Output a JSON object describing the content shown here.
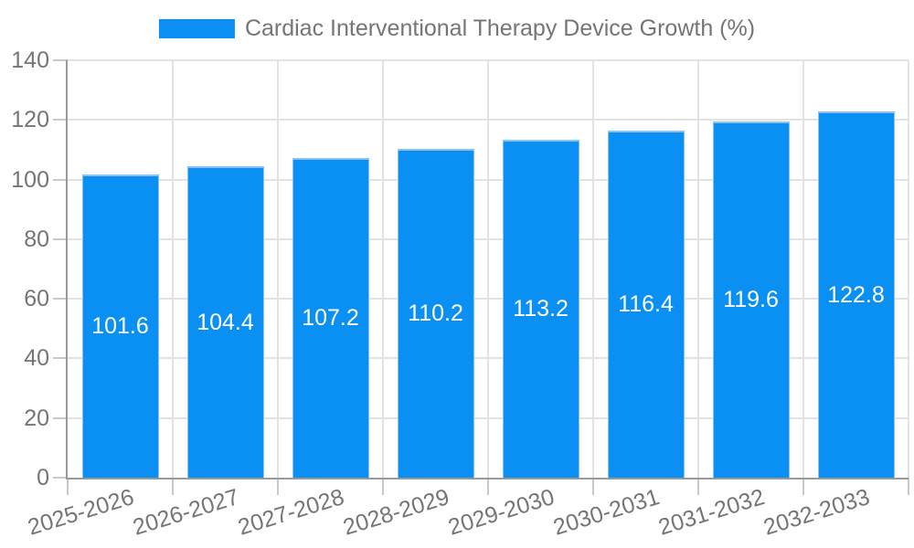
{
  "chart_data": {
    "type": "bar",
    "title": "Cardiac Interventional Therapy Device Growth (%)",
    "legend": [
      "Cardiac Interventional Therapy Device Growth (%)"
    ],
    "legend_position": "top-center",
    "categories": [
      "2025-2026",
      "2026-2027",
      "2027-2028",
      "2028-2029",
      "2029-2030",
      "2030-2031",
      "2031-2032",
      "2032-2033"
    ],
    "values": [
      101.6,
      104.4,
      107.2,
      110.2,
      113.2,
      116.4,
      119.6,
      122.8
    ],
    "value_labels": [
      "101.6",
      "104.4",
      "107.2",
      "110.2",
      "113.2",
      "116.4",
      "119.6",
      "122.8"
    ],
    "xlabel": "",
    "ylabel": "",
    "ylim": [
      0,
      140
    ],
    "yticks": [
      0,
      20,
      40,
      60,
      80,
      100,
      120,
      140
    ],
    "grid": true,
    "x_tick_label_rotation_deg": 17
  },
  "colors": {
    "bar": "#0a8ff2",
    "bar_border": "#8cc2f1",
    "value_label": "#ffffff",
    "axis_text": "#757575",
    "axis_line": "#999999",
    "grid_line": "#e3e3e3",
    "tick_line": "#c8c8c8",
    "background": "#ffffff"
  }
}
